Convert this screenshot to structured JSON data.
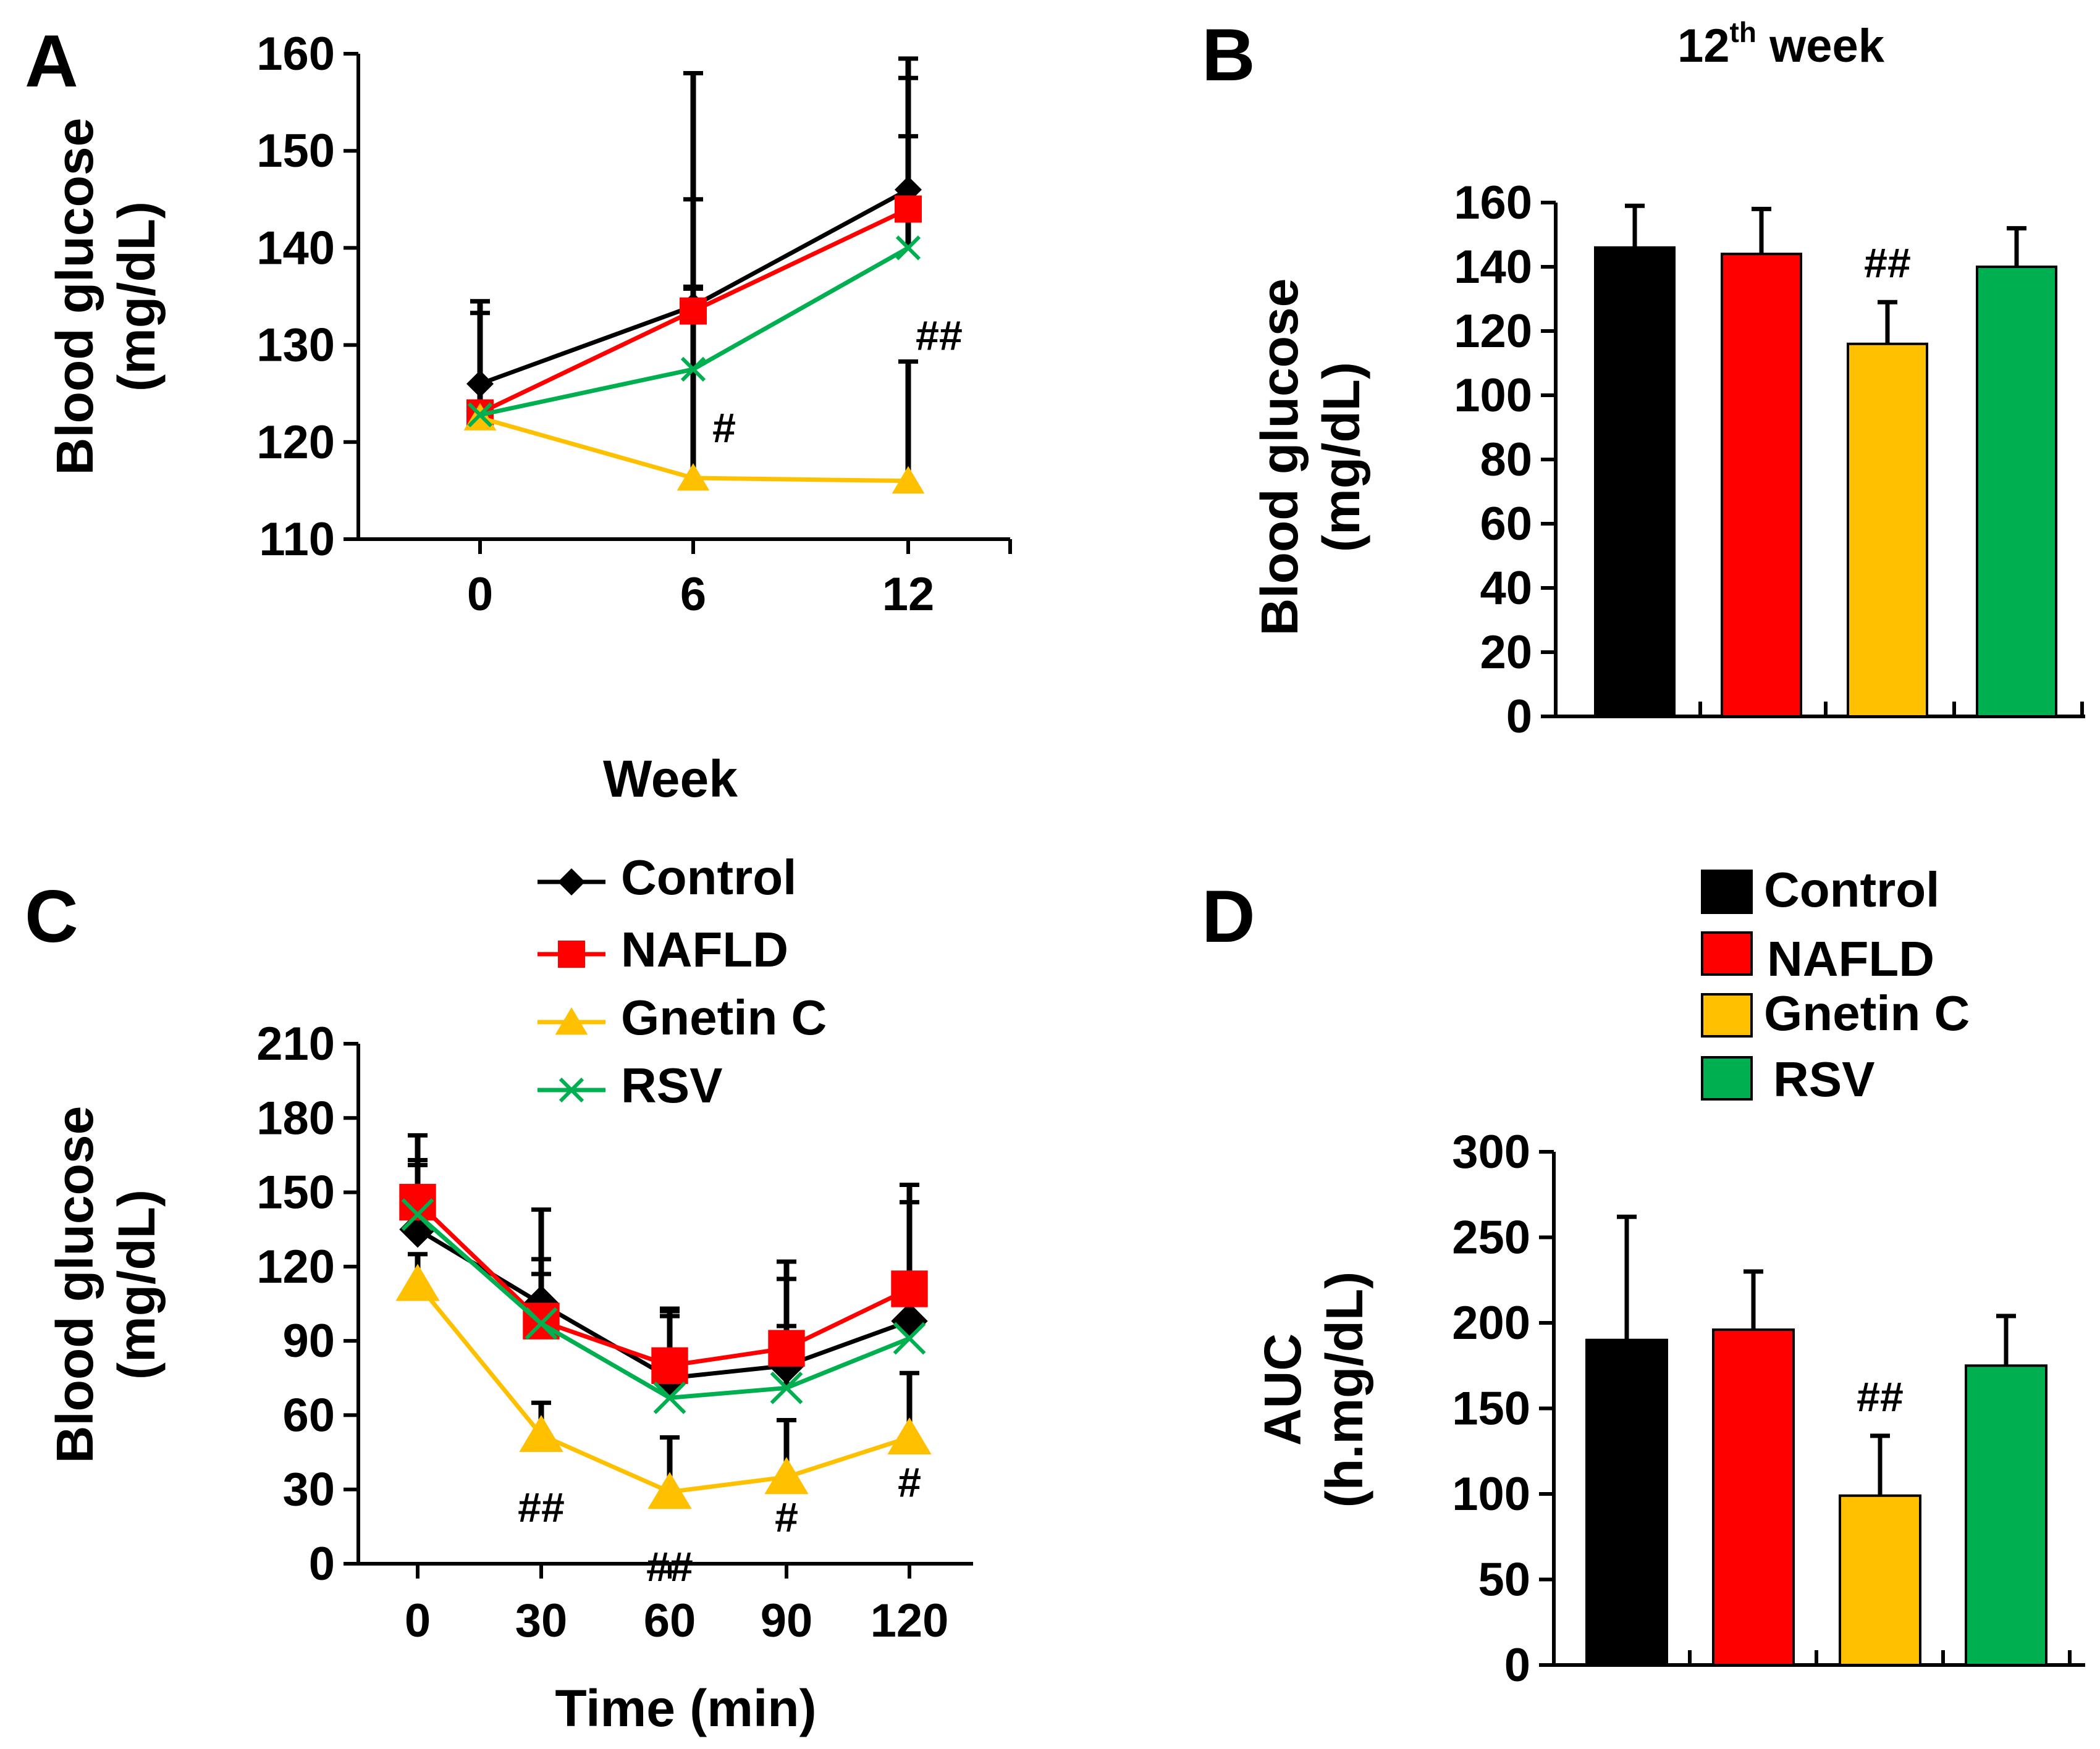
{
  "figure": {
    "panel_labels": [
      "A",
      "B",
      "C",
      "D"
    ]
  },
  "legend": {
    "entries": [
      "Control",
      "NAFLD",
      "Gnetin C",
      "RSV"
    ]
  },
  "colors": {
    "Control": "#000000",
    "NAFLD": "#ff0000",
    "Gnetin C": "#ffc000",
    "RSV": "#00b050"
  },
  "chart_data": [
    {
      "panel": "A",
      "type": "line",
      "title": "",
      "xlabel": "Week",
      "ylabel": [
        "Blood glucose",
        "(mg/dL)"
      ],
      "x": [
        0,
        6,
        12
      ],
      "xtick_labels": [
        "0",
        "6",
        "12"
      ],
      "ylim": [
        110,
        160
      ],
      "yticks": [
        110,
        120,
        130,
        140,
        150,
        160
      ],
      "series": [
        {
          "name": "Control",
          "marker": "diamond",
          "values": [
            126,
            134,
            146
          ],
          "errors": [
            8.5,
            24,
            13.5
          ]
        },
        {
          "name": "NAFLD",
          "marker": "square",
          "values": [
            123,
            133.5,
            144
          ],
          "errors": [
            11.5,
            11.5,
            13.5
          ]
        },
        {
          "name": "Gnetin C",
          "marker": "triangle",
          "values": [
            122.5,
            116.3,
            116
          ],
          "errors": [
            12,
            19.5,
            12.3
          ]
        },
        {
          "name": "RSV",
          "marker": "x",
          "values": [
            122.8,
            127.5,
            140
          ],
          "errors": [
            10.5,
            8.5,
            11.5
          ]
        }
      ],
      "annotations": [
        {
          "x": 6,
          "y": 120,
          "text": "#"
        },
        {
          "x": 12,
          "y": 129.5,
          "text": "##"
        }
      ]
    },
    {
      "panel": "B",
      "type": "bar",
      "title": "12",
      "title_sup": "th",
      "title_suffix": " week",
      "xlabel": "",
      "ylabel": [
        "Blood glucose",
        "(mg/dL)"
      ],
      "categories": [
        "Control",
        "NAFLD",
        "Gnetin C",
        "RSV"
      ],
      "values": [
        146,
        144,
        116,
        140
      ],
      "errors": [
        13,
        14,
        13,
        12
      ],
      "ylim": [
        0,
        160
      ],
      "yticks": [
        0,
        20,
        40,
        60,
        80,
        100,
        120,
        140,
        160
      ],
      "annotations": [
        {
          "category": "Gnetin C",
          "text": "##"
        }
      ]
    },
    {
      "panel": "C",
      "type": "line",
      "title": "",
      "xlabel": "Time (min)",
      "ylabel": [
        "Blood glucose",
        "(mg/dL)"
      ],
      "x": [
        0,
        30,
        60,
        90,
        120
      ],
      "xtick_labels": [
        "0",
        "30",
        "60",
        "90",
        "120"
      ],
      "ylim": [
        0,
        210
      ],
      "yticks": [
        0,
        30,
        60,
        90,
        120,
        150,
        180,
        210
      ],
      "series": [
        {
          "name": "Control",
          "marker": "diamond",
          "values": [
            135,
            105,
            75,
            80,
            98
          ],
          "errors": [
            38,
            38,
            28,
            42,
            55
          ]
        },
        {
          "name": "NAFLD",
          "marker": "square",
          "values": [
            146,
            98,
            80,
            87,
            111
          ],
          "errors": [
            15,
            25,
            22,
            28,
            35
          ]
        },
        {
          "name": "Gnetin C",
          "marker": "triangle",
          "values": [
            113,
            52,
            29,
            35,
            51
          ],
          "errors": [
            12,
            13,
            22,
            23,
            26
          ]
        },
        {
          "name": "RSV",
          "marker": "x",
          "values": [
            141,
            97,
            67,
            71,
            91
          ],
          "errors": [
            22,
            20,
            33,
            25,
            22
          ]
        }
      ],
      "annotations": [
        {
          "x": 30,
          "y": 17,
          "text": "##"
        },
        {
          "x": 60,
          "y": -7,
          "text": "##"
        },
        {
          "x": 90,
          "y": 13,
          "text": "#"
        },
        {
          "x": 120,
          "y": 27,
          "text": "#"
        }
      ]
    },
    {
      "panel": "D",
      "type": "bar",
      "title": "",
      "xlabel": "",
      "ylabel": [
        "AUC",
        "(h.mg/dL)"
      ],
      "categories": [
        "Control",
        "NAFLD",
        "Gnetin C",
        "RSV"
      ],
      "values": [
        190,
        196,
        99,
        175
      ],
      "errors": [
        72,
        34,
        35,
        29
      ],
      "ylim": [
        0,
        300
      ],
      "yticks": [
        0,
        50,
        100,
        150,
        200,
        250,
        300
      ],
      "annotations": [
        {
          "category": "Gnetin C",
          "text": "##"
        }
      ]
    }
  ]
}
